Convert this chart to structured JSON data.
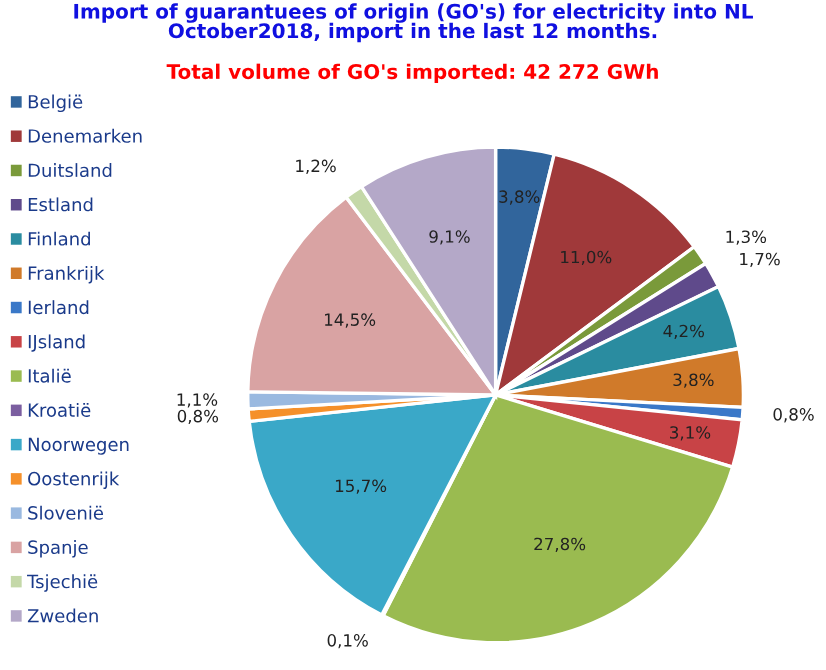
{
  "chart_data": {
    "type": "pie",
    "title": "Import of guarantuees of origin (GO's) for electricity into NL\nOctober2018, import in the last 12 months.",
    "subtitle": "Total volume of GO's imported: 42 272 GWh",
    "categories": [
      "België",
      "Denemarken",
      "Duitsland",
      "Estland",
      "Finland",
      "Frankrijk",
      "Ierland",
      "IJsland",
      "Italië",
      "Kroatië",
      "Noorwegen",
      "Oostenrijk",
      "Slovenië",
      "Spanje",
      "Tsjechië",
      "Zweden"
    ],
    "values": [
      3.8,
      11.0,
      1.3,
      1.7,
      4.2,
      3.8,
      0.8,
      3.1,
      27.8,
      0.1,
      15.7,
      0.8,
      1.1,
      14.5,
      1.2,
      9.1
    ],
    "value_labels": [
      "3,8%",
      "11,0%",
      "1,3%",
      "1,7%",
      "4,2%",
      "3,8%",
      "0,8%",
      "3,1%",
      "27,8%",
      "0,1%",
      "15,7%",
      "0,8%",
      "1,1%",
      "14,5%",
      "1,2%",
      "9,1%"
    ],
    "colors": [
      "#31659c",
      "#a0393a",
      "#7a9a3a",
      "#5f4a8b",
      "#2a8ca0",
      "#d07a2a",
      "#3a78c8",
      "#c84346",
      "#9abb50",
      "#7b5ea0",
      "#3aa8c8",
      "#f5902a",
      "#9ab9e0",
      "#d9a3a3",
      "#c4d8a8",
      "#b4a8c8"
    ],
    "legend": "left"
  }
}
